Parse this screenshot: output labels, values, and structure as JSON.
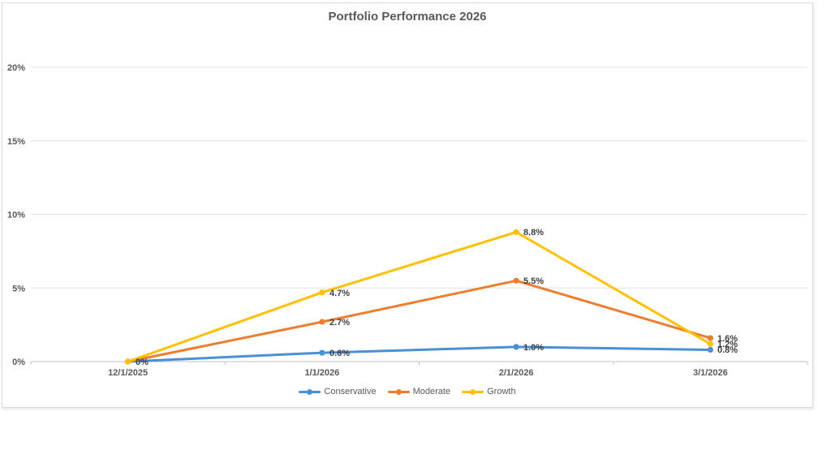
{
  "chart_data": {
    "type": "line",
    "title": "Portfolio Performance 2026",
    "categories": [
      "12/1/2025",
      "1/1/2026",
      "2/1/2026",
      "3/1/2026"
    ],
    "series": [
      {
        "name": "Conservative",
        "color": "#4A90D5",
        "values": [
          0,
          0.6,
          1.0,
          0.8
        ],
        "labels": [
          "0%",
          "0.6%",
          "1.0%",
          "0.8%"
        ]
      },
      {
        "name": "Moderate",
        "color": "#ED7D31",
        "values": [
          0,
          2.7,
          5.5,
          1.6
        ],
        "labels": [
          "0%",
          "2.7%",
          "5.5%",
          "1.6%"
        ]
      },
      {
        "name": "Growth",
        "color": "#FFC000",
        "values": [
          0,
          4.7,
          8.8,
          1.2
        ],
        "labels": [
          "0%",
          "4.7%",
          "8.8%",
          "1.2%"
        ]
      }
    ],
    "y_axis": {
      "min": 0,
      "max": 20,
      "tick_step": 5,
      "tick_labels": [
        "0%",
        "5%",
        "10%",
        "15%",
        "20%"
      ]
    },
    "xlabel": "",
    "ylabel": "",
    "grid": true,
    "legend_position": "bottom",
    "colors": {
      "gridline": "#E2E2E2",
      "axis_line": "#C0C0C0",
      "axis_text": "#595959",
      "data_label_text": "#3F3F3F",
      "title_text": "#595959",
      "frame_border": "#D9D9D9"
    }
  }
}
